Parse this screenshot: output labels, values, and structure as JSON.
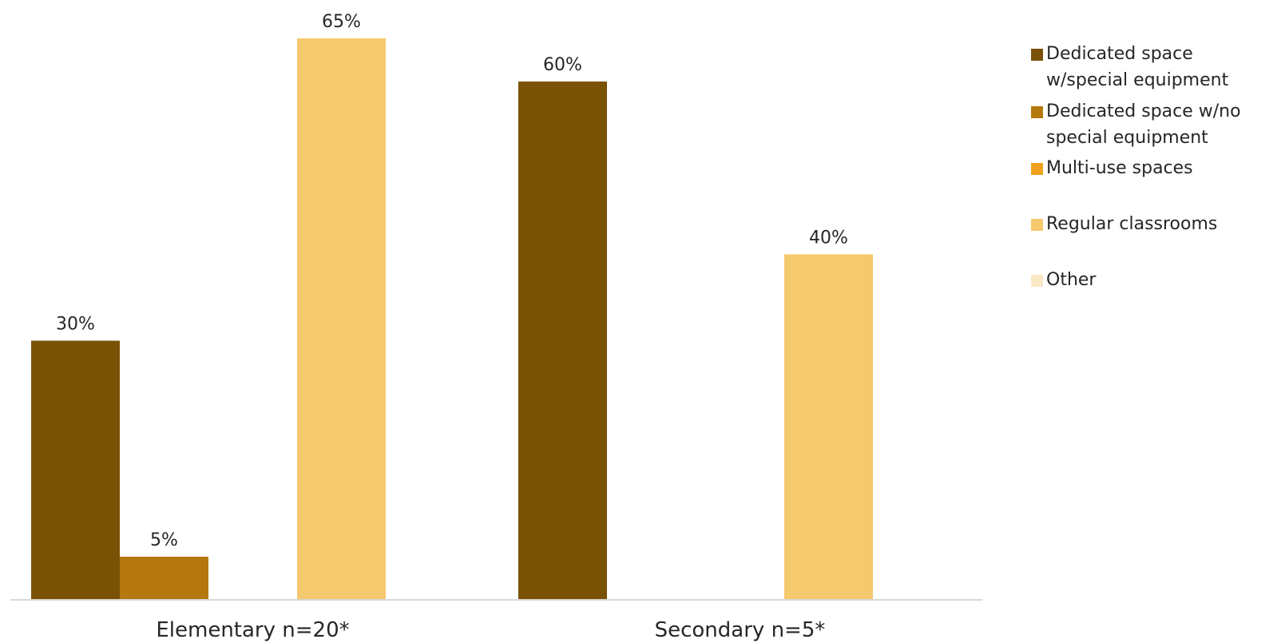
{
  "chart_data": {
    "type": "bar",
    "categories": [
      "Elementary n=20*",
      "Secondary n=5*"
    ],
    "series": [
      {
        "name": "Dedicated space w/special equipment",
        "color": "#7a5206",
        "values": [
          30,
          60
        ]
      },
      {
        "name": "Dedicated space w/no special equipment",
        "color": "#b5780d",
        "values": [
          5,
          null
        ]
      },
      {
        "name": "Multi-use spaces",
        "color": "#f0a21e",
        "values": [
          null,
          null
        ]
      },
      {
        "name": "Regular classrooms",
        "color": "#f5c96e",
        "values": [
          65,
          40
        ]
      },
      {
        "name": "Other",
        "color": "#fbe9c6",
        "values": [
          null,
          null
        ]
      }
    ],
    "value_suffix": "%",
    "ylim": [
      0,
      70
    ],
    "grid": false,
    "legend_position": "right"
  }
}
